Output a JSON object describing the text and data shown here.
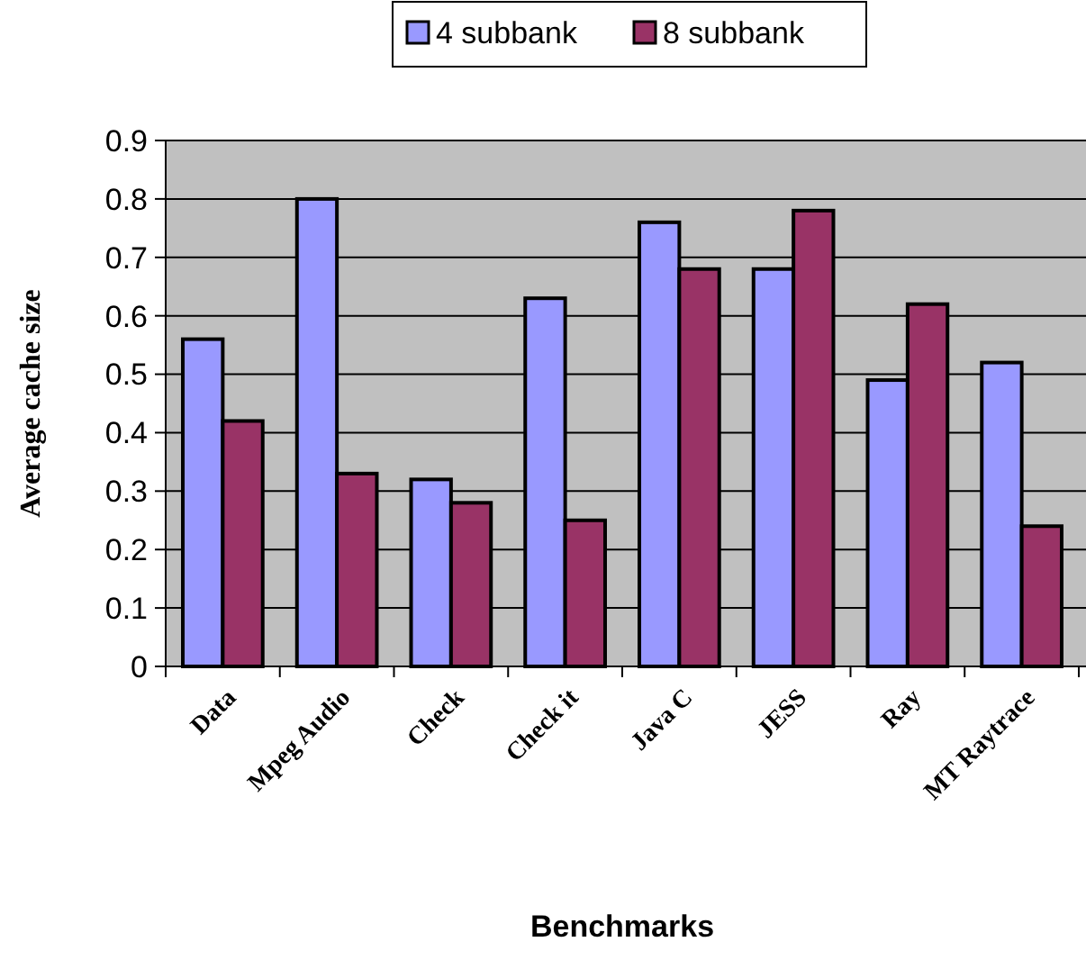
{
  "chart_data": {
    "type": "bar",
    "xlabel": "Benchmarks",
    "ylabel": "Average cache size",
    "categories": [
      "Data",
      "Mpeg Audio",
      "Check",
      "Check it",
      "Java C",
      "JESS",
      "Ray",
      "MT Raytrace"
    ],
    "series": [
      {
        "name": "4 subbank",
        "color": "#9999ff",
        "values": [
          0.56,
          0.8,
          0.32,
          0.63,
          0.76,
          0.68,
          0.49,
          0.52
        ]
      },
      {
        "name": "8 subbank",
        "color": "#993366",
        "values": [
          0.42,
          0.33,
          0.28,
          0.25,
          0.68,
          0.78,
          0.62,
          0.24
        ]
      }
    ],
    "ylim": [
      0,
      0.9
    ],
    "yticks": [
      0,
      0.1,
      0.2,
      0.3,
      0.4,
      0.5,
      0.6,
      0.7,
      0.8,
      0.9
    ],
    "grid": "y",
    "legend": "top"
  }
}
